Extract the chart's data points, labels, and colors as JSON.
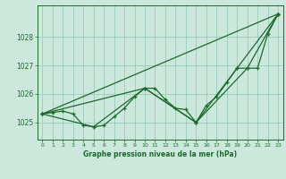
{
  "title": "Graphe pression niveau de la mer (hPa)",
  "background_color": "#cce8dc",
  "grid_color": "#99ccbb",
  "line_color": "#1a6b2a",
  "x_min": -0.5,
  "x_max": 23.5,
  "y_min": 1024.4,
  "y_max": 1029.1,
  "y_ticks": [
    1025,
    1026,
    1027,
    1028
  ],
  "x_ticks": [
    0,
    1,
    2,
    3,
    4,
    5,
    6,
    7,
    8,
    9,
    10,
    11,
    12,
    13,
    14,
    15,
    16,
    17,
    18,
    19,
    20,
    21,
    22,
    23
  ],
  "series1": {
    "x": [
      0,
      1,
      2,
      3,
      4,
      5,
      6,
      7,
      8,
      9,
      10,
      11,
      12,
      13,
      14,
      15,
      16,
      17,
      18,
      19,
      20,
      21,
      22,
      23
    ],
    "y": [
      1025.3,
      1025.35,
      1025.4,
      1025.3,
      1024.9,
      1024.85,
      1024.9,
      1025.2,
      1025.5,
      1025.9,
      1026.2,
      1026.2,
      1025.8,
      1025.5,
      1025.45,
      1025.0,
      1025.6,
      1025.9,
      1026.4,
      1026.9,
      1026.9,
      1026.9,
      1028.1,
      1028.8
    ]
  },
  "series2": {
    "x": [
      0,
      23
    ],
    "y": [
      1025.3,
      1028.8
    ]
  },
  "series3": {
    "x": [
      0,
      5,
      10,
      15,
      19,
      23
    ],
    "y": [
      1025.3,
      1024.85,
      1026.2,
      1025.0,
      1026.9,
      1028.8
    ]
  },
  "series4": {
    "x": [
      0,
      10,
      15,
      20,
      23
    ],
    "y": [
      1025.3,
      1026.2,
      1025.0,
      1026.9,
      1028.8
    ]
  }
}
